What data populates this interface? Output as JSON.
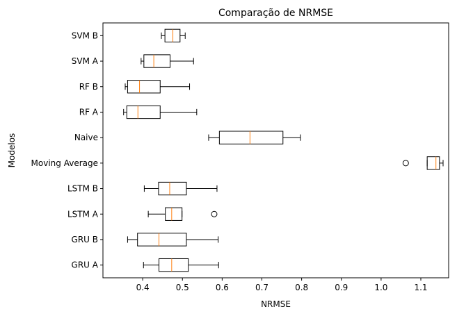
{
  "chart_data": {
    "type": "boxplot",
    "orientation": "horizontal",
    "title": "Comparação de NRMSE",
    "xlabel": "NRMSE",
    "ylabel": "Modelos",
    "xlim": [
      0.3,
      1.17
    ],
    "xticks": [
      0.4,
      0.5,
      0.6,
      0.7,
      0.8,
      0.9,
      1.0,
      1.1
    ],
    "xtick_labels": [
      "0.4",
      "0.5",
      "0.6",
      "0.7",
      "0.8",
      "0.9",
      "1.0",
      "1.1"
    ],
    "grid": false,
    "colors": {
      "box": "#000000",
      "median": "#ff7f0e",
      "flier": "#000000"
    },
    "categories": [
      "SVM B",
      "SVM A",
      "RF B",
      "RF A",
      "Naive",
      "Moving Average",
      "LSTM B",
      "LSTM A",
      "GRU B",
      "GRU A"
    ],
    "boxes": [
      {
        "name": "SVM B",
        "whisker_low": 0.447,
        "q1": 0.456,
        "median": 0.476,
        "q3": 0.494,
        "whisker_high": 0.507,
        "fliers": []
      },
      {
        "name": "SVM A",
        "whisker_low": 0.396,
        "q1": 0.403,
        "median": 0.428,
        "q3": 0.469,
        "whisker_high": 0.528,
        "fliers": []
      },
      {
        "name": "RF B",
        "whisker_low": 0.356,
        "q1": 0.362,
        "median": 0.392,
        "q3": 0.444,
        "whisker_high": 0.518,
        "fliers": []
      },
      {
        "name": "RF A",
        "whisker_low": 0.352,
        "q1": 0.36,
        "median": 0.388,
        "q3": 0.444,
        "whisker_high": 0.536,
        "fliers": []
      },
      {
        "name": "Naive",
        "whisker_low": 0.566,
        "q1": 0.593,
        "median": 0.67,
        "q3": 0.753,
        "whisker_high": 0.797,
        "fliers": []
      },
      {
        "name": "Moving Average",
        "whisker_low": 1.116,
        "q1": 1.116,
        "median": 1.138,
        "q3": 1.147,
        "whisker_high": 1.156,
        "fliers": [
          1.062
        ]
      },
      {
        "name": "LSTM B",
        "whisker_low": 0.404,
        "q1": 0.44,
        "median": 0.468,
        "q3": 0.51,
        "whisker_high": 0.587,
        "fliers": []
      },
      {
        "name": "LSTM A",
        "whisker_low": 0.414,
        "q1": 0.457,
        "median": 0.473,
        "q3": 0.499,
        "whisker_high": 0.499,
        "fliers": [
          0.58
        ]
      },
      {
        "name": "GRU B",
        "whisker_low": 0.362,
        "q1": 0.387,
        "median": 0.441,
        "q3": 0.51,
        "whisker_high": 0.59,
        "fliers": []
      },
      {
        "name": "GRU A",
        "whisker_low": 0.402,
        "q1": 0.441,
        "median": 0.473,
        "q3": 0.515,
        "whisker_high": 0.591,
        "fliers": []
      }
    ]
  }
}
